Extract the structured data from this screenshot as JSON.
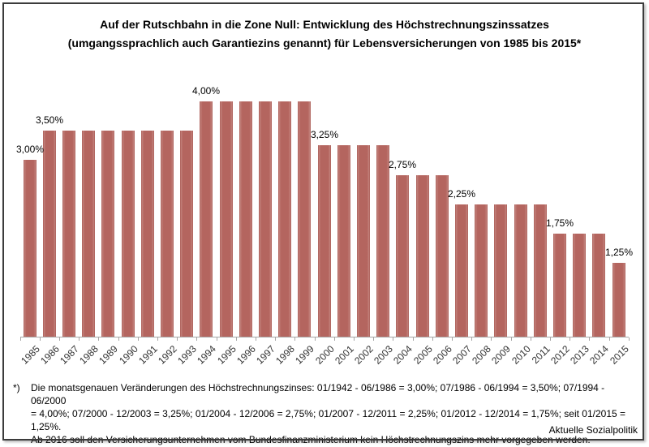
{
  "title": {
    "line1": "Auf der Rutschbahn in die Zone Null: Entwicklung des Höchstrechnungszinssatzes",
    "line2": "(umgangssprachlich auch Garantiezins genannt) für Lebensversicherungen von 1985 bis 2015*"
  },
  "chart_data": {
    "type": "bar",
    "title": "Auf der Rutschbahn in die Zone Null: Entwicklung des Höchstrechnungszinssatzes (umgangssprachlich auch Garantiezins genannt) für Lebensversicherungen von 1985 bis 2015*",
    "categories": [
      "1985",
      "1986",
      "1987",
      "1988",
      "1989",
      "1990",
      "1991",
      "1992",
      "1993",
      "1994",
      "1995",
      "1996",
      "1997",
      "1998",
      "1999",
      "2000",
      "2001",
      "2002",
      "2003",
      "2004",
      "2005",
      "2006",
      "2007",
      "2008",
      "2009",
      "2010",
      "2011",
      "2012",
      "2013",
      "2014",
      "2015"
    ],
    "values": [
      3.0,
      3.5,
      3.5,
      3.5,
      3.5,
      3.5,
      3.5,
      3.5,
      3.5,
      4.0,
      4.0,
      4.0,
      4.0,
      4.0,
      4.0,
      3.25,
      3.25,
      3.25,
      3.25,
      2.75,
      2.75,
      2.75,
      2.25,
      2.25,
      2.25,
      2.25,
      2.25,
      1.75,
      1.75,
      1.75,
      1.25
    ],
    "value_labels": [
      {
        "text": "3,00%",
        "category": "1985"
      },
      {
        "text": "3,50%",
        "category": "1986"
      },
      {
        "text": "4,00%",
        "category": "1994"
      },
      {
        "text": "3,25%",
        "category": "2000"
      },
      {
        "text": "2,75%",
        "category": "2004"
      },
      {
        "text": "2,25%",
        "category": "2007"
      },
      {
        "text": "1,75%",
        "category": "2012"
      },
      {
        "text": "1,25%",
        "category": "2015"
      }
    ],
    "xlabel": "",
    "ylabel": "",
    "ylim": [
      0,
      4.2
    ],
    "grid": false,
    "legend": "none",
    "bar_color": "#b4655f",
    "bar_edge_color": "#a5544f",
    "axis_color": "#a6a6a6",
    "tick_label_color": "#333333",
    "value_label_color": "#000000"
  },
  "footnote": {
    "marker": "*)",
    "lines": [
      "Die monatsgenauen Veränderungen des Höchstrechnungszinses: 01/1942 - 06/1986 = 3,00%; 07/1986 - 06/1994 = 3,50%; 07/1994 - 06/2000",
      "= 4,00%; 07/2000 - 12/2003 = 3,25%; 01/2004 - 12/2006 = 2,75%; 01/2007 - 12/2011 = 2,25%; 01/2012 - 12/2014 = 1,75%; seit 01/2015 = 1,25%.",
      "Ab 2016 soll den Versicherungsunternehmen vom Bundesfinanzministerium kein Höchstrechnungszins mehr vorgegeben werden."
    ]
  },
  "source": {
    "label": "Aktuelle Sozialpolitik"
  }
}
